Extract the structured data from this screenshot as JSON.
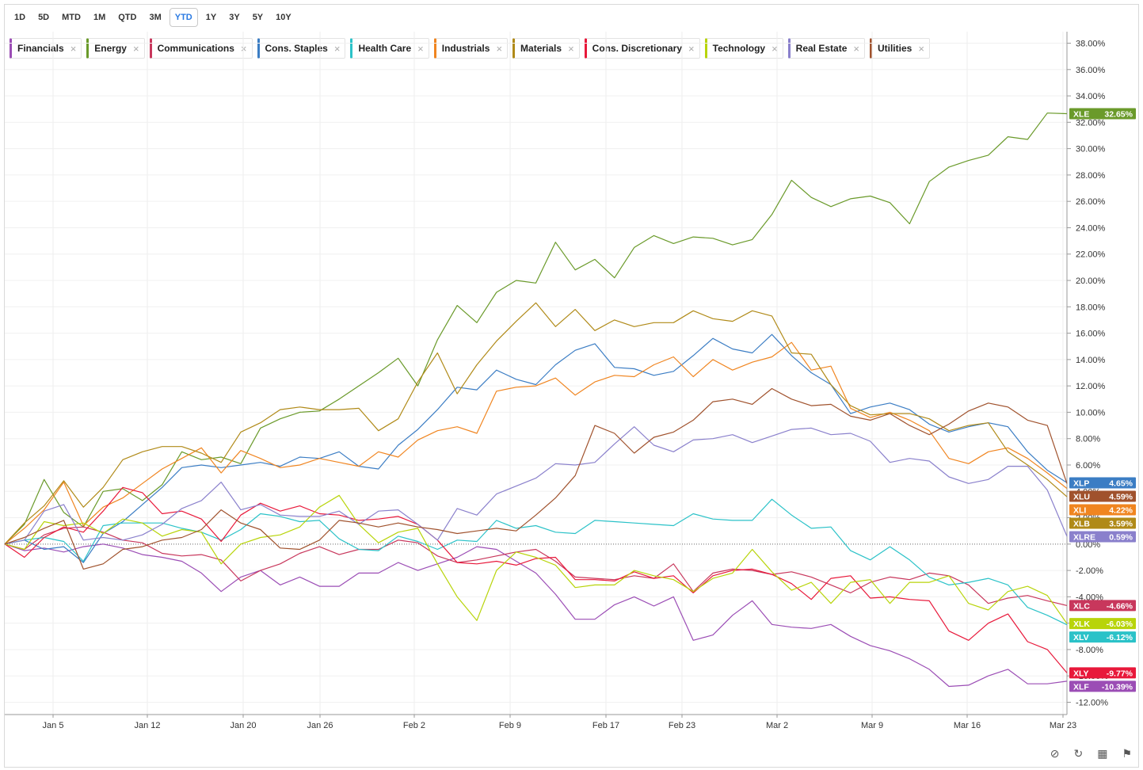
{
  "toolbar": {
    "periods": [
      "1D",
      "5D",
      "MTD",
      "1M",
      "QTD",
      "3M",
      "YTD",
      "1Y",
      "3Y",
      "5Y",
      "10Y"
    ],
    "active": "YTD"
  },
  "footer": {
    "icons": [
      "hide-icon",
      "reset-icon",
      "grid-icon",
      "tag-icon"
    ]
  },
  "chart_data": {
    "type": "line",
    "x_ticks": [
      "Jan 5",
      "Jan 12",
      "Jan 20",
      "Jan 26",
      "Feb 2",
      "Feb 9",
      "Feb 17",
      "Feb 23",
      "Mar 2",
      "Mar 9",
      "Mar 16",
      "Mar 23"
    ],
    "y_ticks": [
      "38.00%",
      "36.00%",
      "34.00%",
      "32.00%",
      "30.00%",
      "28.00%",
      "26.00%",
      "24.00%",
      "22.00%",
      "20.00%",
      "18.00%",
      "16.00%",
      "14.00%",
      "12.00%",
      "10.00%",
      "8.00%",
      "6.00%",
      "4.00%",
      "2.00%",
      "0.00%",
      "-2.00%",
      "-4.00%",
      "-6.00%",
      "-8.00%",
      "-10.00%",
      "-12.00%"
    ],
    "ylim": [
      -12,
      38
    ],
    "y_unit": "%",
    "grid": true,
    "zero_line": "dotted",
    "series": [
      {
        "name": "Financials",
        "ticker": "XLF",
        "color": "#9b4db5",
        "last": "-10.39%",
        "values": [
          0,
          -0.5,
          -0.3,
          -0.6,
          -0.2,
          0,
          -0.3,
          -0.8,
          -1.0,
          -1.3,
          -2.2,
          -3.6,
          -2.5,
          -2.0,
          -3.1,
          -2.5,
          -3.2,
          -3.2,
          -2.2,
          -2.2,
          -1.4,
          -2.0,
          -1.5,
          -1.0,
          -0.2,
          -0.4,
          -1.3,
          -2.2,
          -3.8,
          -5.7,
          -5.7,
          -4.6,
          -4.0,
          -4.7,
          -4.0,
          -7.3,
          -6.9,
          -5.4,
          -4.3,
          -6.1,
          -6.3,
          -6.4,
          -6.1,
          -7.0,
          -7.7,
          -8.1,
          -8.7,
          -9.5,
          -10.8,
          -10.7,
          -10.0,
          -9.5,
          -10.6,
          -10.6,
          -10.4
        ]
      },
      {
        "name": "Energy",
        "ticker": "XLE",
        "color": "#6a9a2a",
        "last": "32.65%",
        "values": [
          0,
          1.5,
          4.9,
          2.4,
          1.3,
          4.0,
          4.2,
          3.3,
          4.5,
          7.0,
          6.4,
          6.6,
          6.1,
          8.8,
          9.5,
          10.0,
          10.1,
          11.0,
          12.0,
          13.0,
          14.1,
          12.0,
          15.5,
          18.1,
          16.8,
          19.1,
          20.0,
          19.8,
          22.9,
          20.8,
          21.6,
          20.2,
          22.5,
          23.4,
          22.8,
          23.3,
          23.2,
          22.7,
          23.1,
          25.0,
          27.6,
          26.3,
          25.6,
          26.2,
          26.4,
          25.9,
          24.3,
          27.5,
          28.6,
          29.1,
          29.5,
          30.9,
          30.7,
          32.7,
          32.65
        ]
      },
      {
        "name": "Communications",
        "ticker": "XLC",
        "color": "#c8375c",
        "last": "-4.66%",
        "values": [
          0,
          -0.4,
          0.7,
          1.2,
          1.3,
          0.9,
          0.3,
          0.1,
          -0.7,
          -0.9,
          -0.8,
          -1.2,
          -2.8,
          -2.0,
          -1.5,
          -0.7,
          -0.2,
          -0.8,
          -0.4,
          -0.4,
          0.3,
          0.1,
          -0.9,
          -1.4,
          -1.2,
          -0.9,
          -0.6,
          -0.4,
          -1.3,
          -2.5,
          -2.6,
          -2.7,
          -2.4,
          -2.6,
          -1.5,
          -3.6,
          -2.2,
          -1.9,
          -2.0,
          -2.3,
          -2.1,
          -2.5,
          -3.1,
          -3.7,
          -2.9,
          -2.5,
          -2.7,
          -2.2,
          -2.4,
          -3.1,
          -4.5,
          -4.1,
          -3.9,
          -4.3,
          -4.66
        ]
      },
      {
        "name": "Cons. Staples",
        "ticker": "XLP",
        "color": "#3b7dc4",
        "last": "4.65%",
        "values": [
          0,
          0.3,
          -0.4,
          -0.2,
          -1.4,
          0.8,
          1.7,
          3.0,
          4.3,
          5.8,
          6.0,
          5.8,
          6.0,
          6.2,
          5.9,
          6.6,
          6.5,
          7.0,
          5.9,
          5.7,
          7.5,
          8.7,
          10.2,
          11.9,
          11.7,
          13.2,
          12.5,
          12.1,
          13.6,
          14.7,
          15.2,
          13.4,
          13.3,
          12.8,
          13.1,
          14.3,
          15.6,
          14.8,
          14.5,
          15.9,
          14.3,
          13.0,
          12.1,
          9.9,
          10.4,
          10.7,
          10.2,
          9.1,
          8.5,
          8.9,
          9.2,
          8.9,
          7.0,
          5.6,
          4.65
        ]
      },
      {
        "name": "Health Care",
        "ticker": "XLV",
        "color": "#2bc2c8",
        "last": "-6.12%",
        "values": [
          0,
          0.3,
          0.5,
          0.2,
          -1.3,
          1.4,
          1.6,
          1.6,
          1.6,
          1.2,
          0.9,
          0.3,
          1.1,
          2.3,
          2.1,
          1.7,
          1.8,
          0.4,
          -0.4,
          -0.5,
          0.6,
          0.2,
          -0.4,
          0.3,
          0.2,
          1.8,
          1.2,
          1.4,
          0.9,
          0.8,
          1.8,
          1.7,
          1.6,
          1.5,
          1.4,
          2.3,
          1.9,
          1.8,
          1.8,
          3.4,
          2.2,
          1.2,
          1.3,
          -0.5,
          -1.2,
          -0.2,
          -1.2,
          -2.5,
          -3.1,
          -2.9,
          -2.6,
          -3.1,
          -4.8,
          -5.4,
          -6.12
        ]
      },
      {
        "name": "Industrials",
        "ticker": "XLI",
        "color": "#f08520",
        "last": "4.22%",
        "values": [
          0,
          1.2,
          2.6,
          4.7,
          1.4,
          2.8,
          3.5,
          4.6,
          5.7,
          6.5,
          7.3,
          5.4,
          7.1,
          6.5,
          5.8,
          6.0,
          6.5,
          6.2,
          5.9,
          7.0,
          6.6,
          7.9,
          8.6,
          8.9,
          8.4,
          11.6,
          11.9,
          12.0,
          12.6,
          11.3,
          12.3,
          12.8,
          12.7,
          13.6,
          14.2,
          12.7,
          14.0,
          13.2,
          13.8,
          14.2,
          15.3,
          13.2,
          13.5,
          10.3,
          9.6,
          10.0,
          9.4,
          8.6,
          6.5,
          6.1,
          7.0,
          7.3,
          6.5,
          5.4,
          4.22
        ]
      },
      {
        "name": "Materials",
        "ticker": "XLB",
        "color": "#b08a18",
        "last": "3.59%",
        "values": [
          0,
          1.6,
          2.9,
          4.8,
          2.8,
          4.3,
          6.4,
          7.0,
          7.4,
          7.4,
          6.9,
          6.2,
          8.5,
          9.2,
          10.2,
          10.4,
          10.2,
          10.2,
          10.3,
          8.6,
          9.5,
          12.3,
          14.5,
          11.4,
          13.6,
          15.4,
          16.9,
          18.3,
          16.5,
          17.8,
          16.2,
          17.0,
          16.5,
          16.8,
          16.8,
          17.7,
          17.1,
          16.9,
          17.7,
          17.3,
          14.5,
          14.4,
          12.1,
          10.5,
          9.8,
          9.9,
          9.9,
          9.5,
          8.6,
          9.0,
          9.2,
          7.0,
          6.0,
          4.9,
          3.59
        ]
      },
      {
        "name": "Cons. Discretionary",
        "ticker": "XLY",
        "color": "#e8183a",
        "last": "-9.77%",
        "values": [
          0,
          -1.0,
          0.5,
          1.3,
          0.9,
          2.5,
          4.3,
          3.9,
          2.3,
          2.5,
          1.9,
          0.2,
          2.2,
          3.1,
          2.5,
          2.9,
          2.3,
          2.2,
          1.8,
          1.9,
          2.1,
          1.5,
          0.3,
          -1.4,
          -1.5,
          -1.3,
          -1.6,
          -1.1,
          -1.0,
          -2.7,
          -2.7,
          -2.8,
          -2.1,
          -2.6,
          -2.4,
          -3.7,
          -2.4,
          -2.0,
          -1.9,
          -2.3,
          -3.0,
          -4.2,
          -2.6,
          -2.4,
          -4.1,
          -4.0,
          -4.2,
          -4.3,
          -6.6,
          -7.3,
          -6.0,
          -5.3,
          -7.4,
          -8.0,
          -9.77
        ]
      },
      {
        "name": "Technology",
        "ticker": "XLK",
        "color": "#b8d40a",
        "last": "-6.03%",
        "values": [
          0,
          -0.4,
          1.7,
          1.4,
          1.6,
          0.8,
          1.9,
          1.6,
          0.6,
          1.1,
          0.9,
          -1.5,
          0.0,
          0.5,
          0.7,
          1.3,
          2.8,
          3.7,
          1.5,
          0.1,
          0.9,
          1.2,
          -1.5,
          -4.0,
          -5.8,
          -2.0,
          -0.6,
          -1.0,
          -1.6,
          -3.3,
          -3.1,
          -3.1,
          -2.0,
          -2.4,
          -2.7,
          -3.6,
          -2.6,
          -2.2,
          -0.4,
          -2.1,
          -3.5,
          -2.9,
          -4.5,
          -2.9,
          -2.7,
          -4.5,
          -2.9,
          -2.9,
          -2.4,
          -4.5,
          -5.0,
          -3.6,
          -3.2,
          -3.9,
          -6.03
        ]
      },
      {
        "name": "Real Estate",
        "ticker": "XLRE",
        "color": "#8a80cc",
        "last": "0.59%",
        "values": [
          0,
          0.3,
          2.5,
          3.0,
          0.3,
          0.5,
          0.3,
          0.7,
          1.5,
          2.7,
          3.3,
          4.7,
          2.6,
          3.0,
          2.2,
          2.1,
          2.1,
          2.5,
          1.5,
          2.5,
          2.6,
          1.5,
          0.3,
          2.7,
          2.2,
          3.8,
          4.4,
          5.0,
          6.1,
          6.0,
          6.2,
          7.6,
          8.9,
          7.5,
          7.0,
          7.9,
          8.0,
          8.3,
          7.7,
          8.2,
          8.7,
          8.8,
          8.3,
          8.4,
          7.8,
          6.2,
          6.5,
          6.3,
          5.1,
          4.6,
          4.9,
          5.9,
          5.9,
          4.1,
          0.59
        ]
      },
      {
        "name": "Utilities",
        "ticker": "XLU",
        "color": "#a0522d",
        "last": "4.59%",
        "values": [
          0,
          0.5,
          1.2,
          1.8,
          -1.9,
          -1.5,
          -0.4,
          -0.2,
          0.3,
          0.5,
          1.1,
          2.6,
          1.6,
          1.1,
          -0.3,
          -0.4,
          0.3,
          1.8,
          1.6,
          1.3,
          1.6,
          1.3,
          1.1,
          0.8,
          1.0,
          1.2,
          1.0,
          2.2,
          3.5,
          5.2,
          9.0,
          8.4,
          6.9,
          8.1,
          8.5,
          9.4,
          10.8,
          11.0,
          10.6,
          11.8,
          11.0,
          10.5,
          10.6,
          9.7,
          9.4,
          9.9,
          9.0,
          8.3,
          9.1,
          10.1,
          10.7,
          10.4,
          9.4,
          9.0,
          4.59
        ]
      }
    ]
  }
}
